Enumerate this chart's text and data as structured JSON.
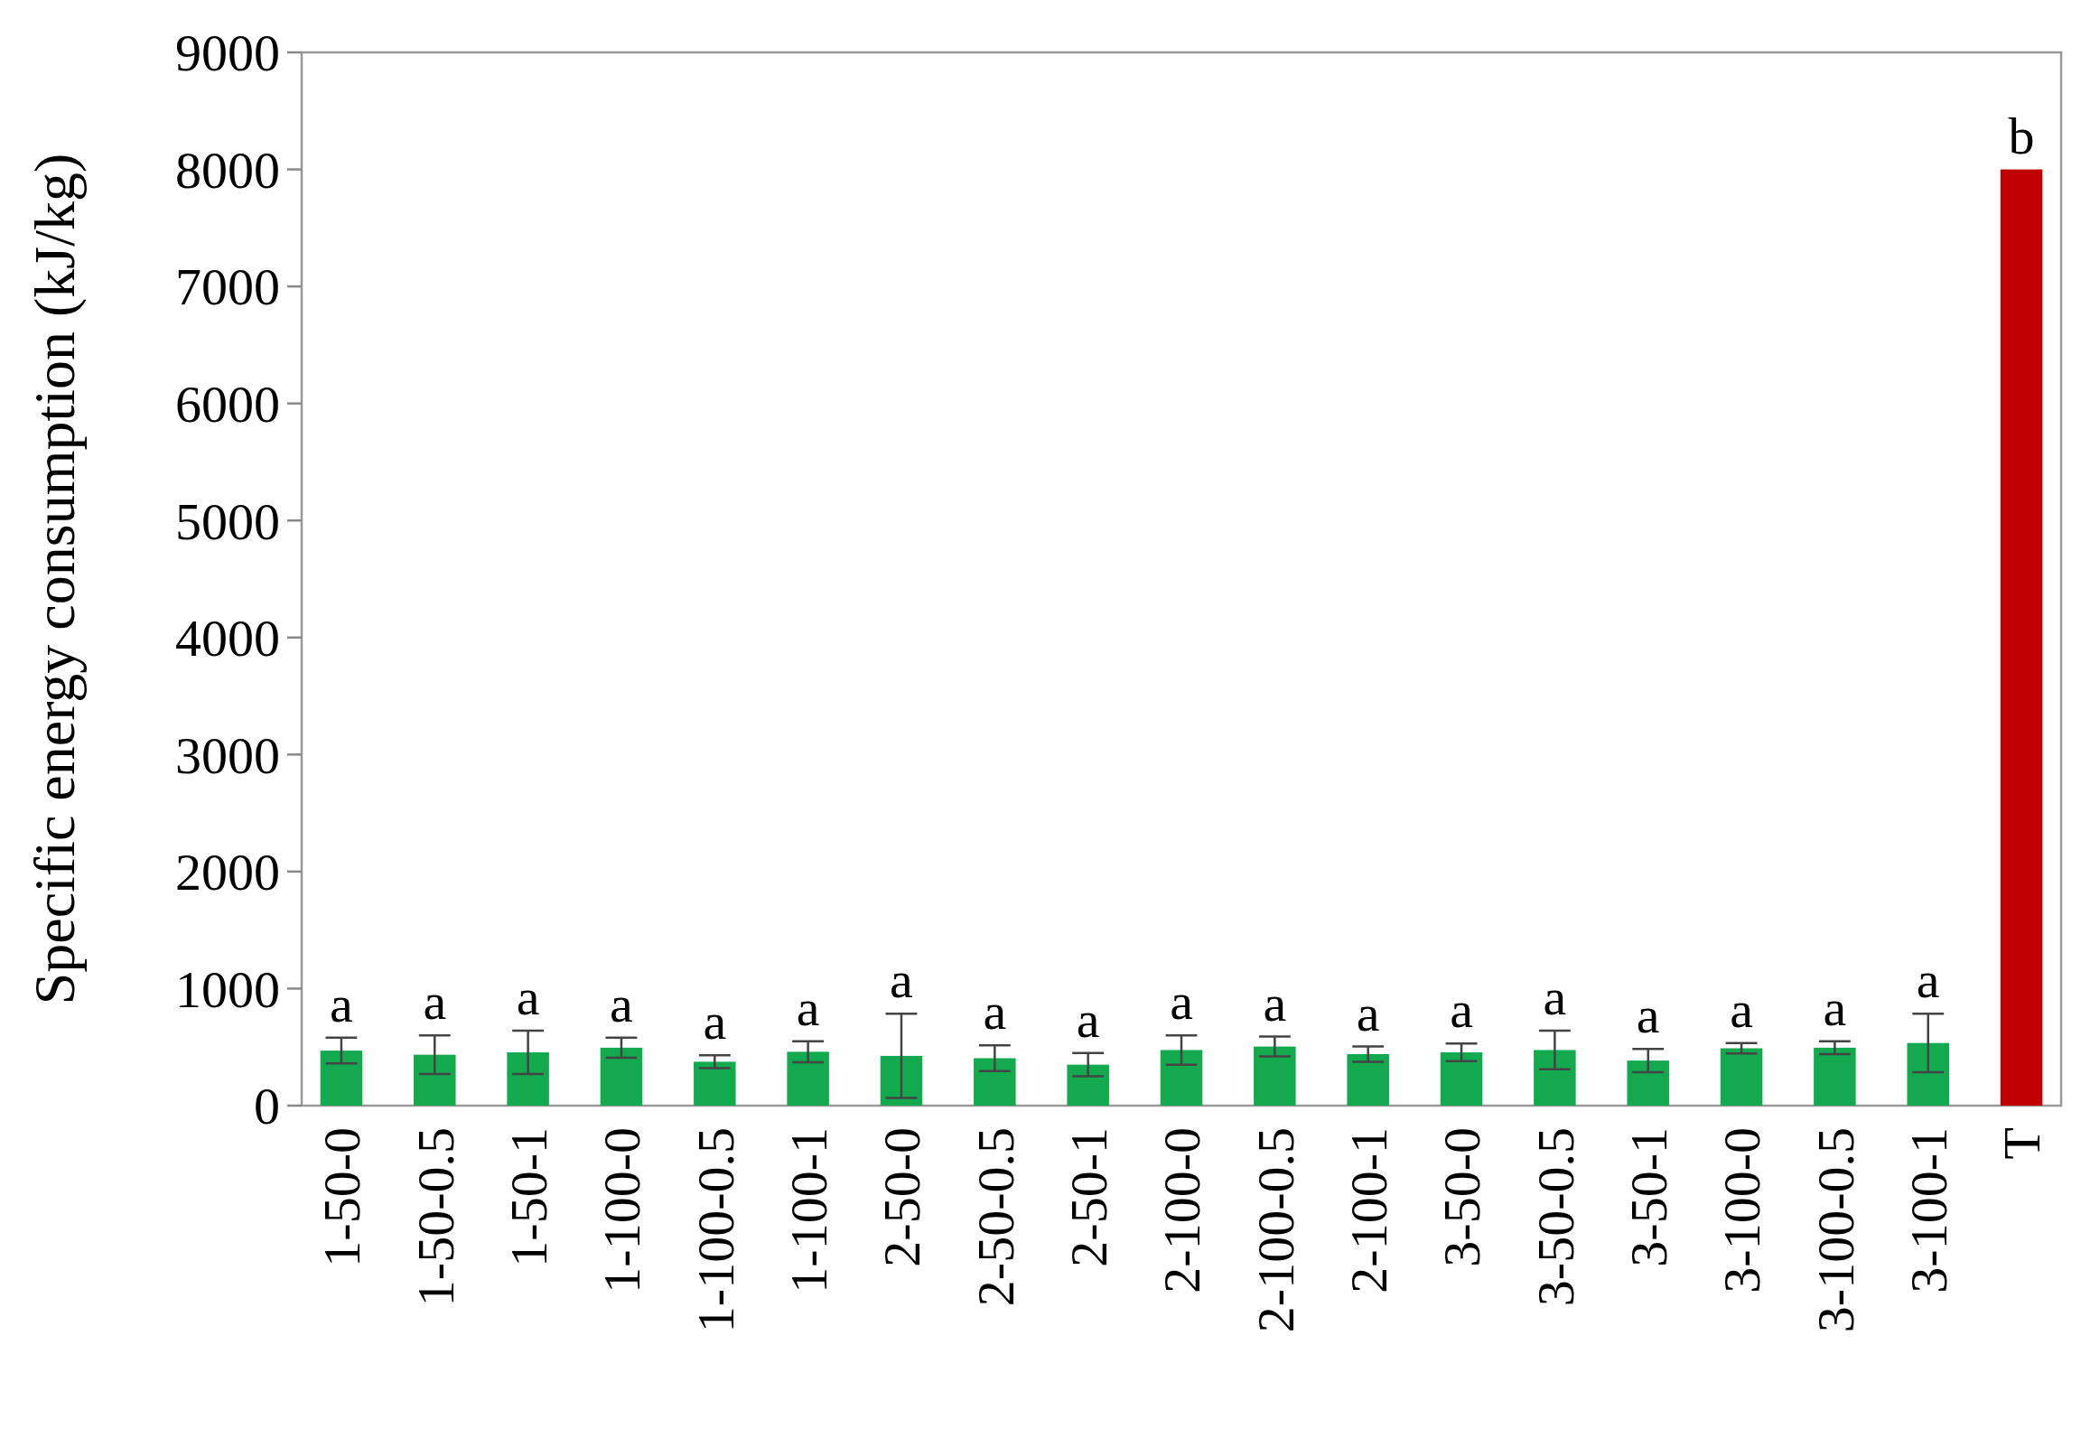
{
  "chart_data": {
    "type": "bar",
    "ylabel": "Specific energy consumption (kJ/kg)",
    "categories": [
      "1-50-0",
      "1-50-0.5",
      "1-50-1",
      "1-100-0",
      "1-100-0.5",
      "1-100-1",
      "2-50-0",
      "2-50-0.5",
      "2-50-1",
      "2-100-0",
      "2-100-0.5",
      "2-100-1",
      "3-50-0",
      "3-50-0.5",
      "3-50-1",
      "3-100-0",
      "3-100-0.5",
      "3-100-1",
      "T"
    ],
    "values": [
      470,
      435,
      455,
      495,
      375,
      460,
      425,
      405,
      350,
      475,
      505,
      440,
      455,
      475,
      385,
      490,
      495,
      535,
      8000
    ],
    "errors": [
      110,
      165,
      185,
      85,
      55,
      90,
      360,
      110,
      100,
      125,
      85,
      65,
      75,
      165,
      100,
      45,
      55,
      250,
      null
    ],
    "colors": [
      "#12a94f",
      "#12a94f",
      "#12a94f",
      "#12a94f",
      "#12a94f",
      "#12a94f",
      "#12a94f",
      "#12a94f",
      "#12a94f",
      "#12a94f",
      "#12a94f",
      "#12a94f",
      "#12a94f",
      "#12a94f",
      "#12a94f",
      "#12a94f",
      "#12a94f",
      "#12a94f",
      "#c00000"
    ],
    "ylim": [
      0,
      9000
    ],
    "yticks": [
      0,
      1000,
      2000,
      3000,
      4000,
      5000,
      6000,
      7000,
      8000,
      9000
    ],
    "grid": false,
    "annotations": [
      {
        "text": "a",
        "x": "1-50-0",
        "y": 580
      },
      {
        "text": "a",
        "x": "1-50-0.5",
        "y": 600
      },
      {
        "text": "a",
        "x": "1-50-1",
        "y": 640
      },
      {
        "text": "a",
        "x": "1-100-0",
        "y": 580
      },
      {
        "text": "a",
        "x": "1-100-0.5",
        "y": 430
      },
      {
        "text": "a",
        "x": "1-100-1",
        "y": 550
      },
      {
        "text": "a",
        "x": "2-50-0",
        "y": 785
      },
      {
        "text": "a",
        "x": "2-50-0.5",
        "y": 515
      },
      {
        "text": "a",
        "x": "2-50-1",
        "y": 450
      },
      {
        "text": "a",
        "x": "2-100-0",
        "y": 600
      },
      {
        "text": "a",
        "x": "2-100-0.5",
        "y": 590
      },
      {
        "text": "a",
        "x": "2-100-1",
        "y": 505
      },
      {
        "text": "a",
        "x": "3-50-0",
        "y": 530
      },
      {
        "text": "a",
        "x": "3-50-0.5",
        "y": 640
      },
      {
        "text": "a",
        "x": "3-50-1",
        "y": 485
      },
      {
        "text": "a",
        "x": "3-100-0",
        "y": 535
      },
      {
        "text": "a",
        "x": "3-100-0.5",
        "y": 550
      },
      {
        "text": "a",
        "x": "3-100-1",
        "y": 785
      },
      {
        "text": "b",
        "x": "T",
        "y": 8000
      }
    ]
  }
}
